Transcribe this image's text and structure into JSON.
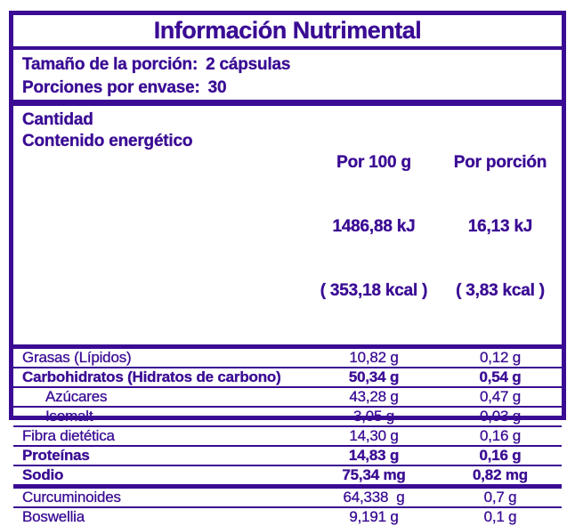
{
  "colors": {
    "purple": "#3A0C94",
    "background": "#FFFFFF"
  },
  "title": "Información Nutrimental",
  "serving": {
    "serving_size_label": "Tamaño de la porción:",
    "serving_size_value": "2 cápsulas",
    "servings_per_container_label": "Porciones por envase:",
    "servings_per_container_value": "30"
  },
  "table": {
    "header": {
      "amount_label": "Cantidad",
      "energy_label": "Contenido energético",
      "per100": {
        "title": "Por 100 g",
        "kj": "1486,88 kJ",
        "kcal": "( 353,18 kcal )"
      },
      "portion": {
        "title": "Por porción",
        "kj": "16,13 kJ",
        "kcal": "( 3,83 kcal )"
      }
    },
    "rows": [
      {
        "label": "Grasas (Lípidos)",
        "per100": "10,82 g",
        "portion": "0,12 g"
      },
      {
        "label": "Carbohidratos (Hidratos de carbono)",
        "per100": "50,34 g",
        "portion": "0,54 g"
      },
      {
        "label": "Azúcares",
        "per100": "43,28 g",
        "portion": "0,47 g"
      },
      {
        "label": "Isomalt",
        "per100": "3,05 g",
        "portion": "0,03 g"
      },
      {
        "label": "Fibra dietética",
        "per100": "14,30 g",
        "portion": "0,16 g"
      },
      {
        "label": "Proteínas",
        "per100": "14,83 g",
        "portion": "0,16 g"
      },
      {
        "label": "Sodio",
        "per100": "75,34 mg",
        "portion": "0,82 mg"
      },
      {
        "label": "Curcuminoides",
        "per100": "64,338  g",
        "portion": "0,7 g"
      },
      {
        "label": "Boswellia",
        "per100": "9,191 g",
        "portion": "0,1 g"
      }
    ]
  }
}
